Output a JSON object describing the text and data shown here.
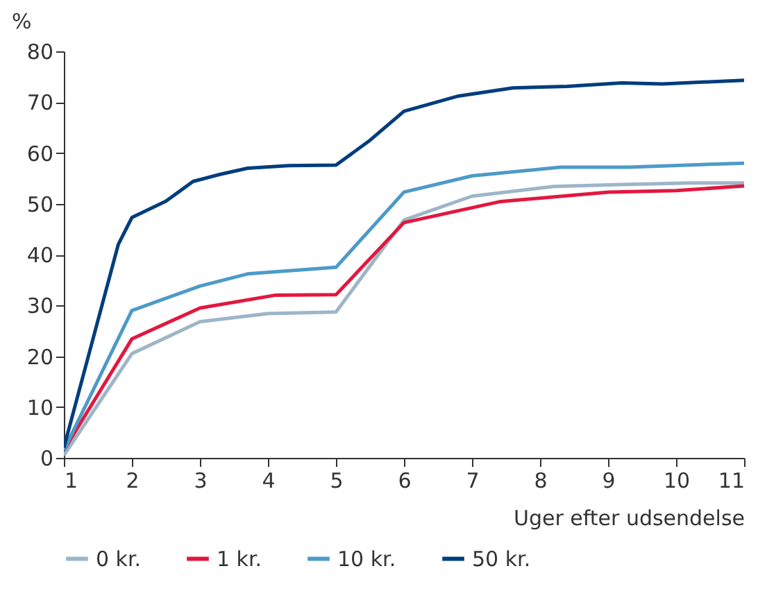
{
  "chart_data": {
    "type": "line",
    "xlabel": "Uger efter udsendelse",
    "ylabel": "%",
    "xlim": [
      1,
      11
    ],
    "xticks": [
      1,
      2,
      3,
      4,
      5,
      6,
      7,
      8,
      9,
      10,
      11
    ],
    "ylim": [
      0,
      80
    ],
    "yticks": [
      0,
      10,
      20,
      30,
      40,
      50,
      60,
      70,
      80
    ],
    "grid": false,
    "legend": "bottom",
    "marker": "none",
    "line_style": "solid",
    "series": [
      {
        "name": "0 kr.",
        "color": "#9db5c8",
        "x": [
          1,
          2,
          3,
          4,
          5,
          6,
          7,
          8.2,
          9.2,
          10.2,
          11
        ],
        "values": [
          0.5,
          20.5,
          26.8,
          28.4,
          28.7,
          46.8,
          51.5,
          53.4,
          53.8,
          54.1,
          54.1
        ]
      },
      {
        "name": "1 kr.",
        "color": "#e3173e",
        "x": [
          1,
          2,
          3,
          4.1,
          5,
          6,
          7.4,
          9,
          10,
          11
        ],
        "values": [
          1.5,
          23.4,
          29.5,
          32,
          32.1,
          46.3,
          50.4,
          52.3,
          52.6,
          53.5
        ]
      },
      {
        "name": "10 kr.",
        "color": "#4d9ac8",
        "x": [
          1,
          2,
          3,
          3.7,
          5,
          6,
          7,
          8.3,
          9.3,
          11
        ],
        "values": [
          1.5,
          29,
          33.8,
          36.2,
          37.5,
          52.3,
          55.5,
          57.2,
          57.2,
          58
        ]
      },
      {
        "name": "50 kr.",
        "color": "#003d7c",
        "x": [
          1,
          1.8,
          2,
          2.5,
          2.9,
          3.3,
          3.7,
          4.3,
          5,
          5.5,
          6,
          6.8,
          7.6,
          8.4,
          9.2,
          9.8,
          11
        ],
        "values": [
          2,
          42,
          47.3,
          50.5,
          54.4,
          55.8,
          57,
          57.5,
          57.6,
          62.5,
          68.2,
          71.2,
          72.8,
          73.1,
          73.8,
          73.6,
          74.3
        ]
      }
    ]
  }
}
